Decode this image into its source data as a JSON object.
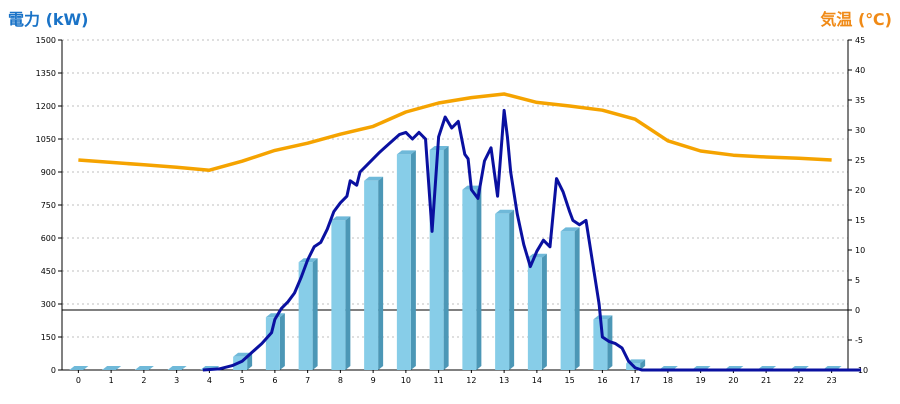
{
  "chart_data": {
    "type": "bar",
    "title_left": "電力 (kW)",
    "title_right": "気温 (℃)",
    "colors": {
      "left_title": "#1a73c7",
      "right_title": "#f08a16",
      "bar_front": "#87cde8",
      "bar_side": "#4c97b6",
      "bar_top": "#6fb9d9",
      "power_line": "#0a10a0",
      "temp_line": "#f5a300",
      "grid": "#bfbfbf",
      "axis": "#000000"
    },
    "categories": [
      "0",
      "1",
      "2",
      "3",
      "4",
      "5",
      "6",
      "7",
      "8",
      "9",
      "10",
      "11",
      "12",
      "13",
      "14",
      "15",
      "16",
      "17",
      "18",
      "19",
      "20",
      "21",
      "22",
      "23"
    ],
    "y_left": {
      "min": 0,
      "max": 1500,
      "ticks": [
        "0",
        "150",
        "300",
        "450",
        "600",
        "750",
        "900",
        "1050",
        "1200",
        "1350",
        "1500"
      ]
    },
    "y_right": {
      "min": -10,
      "max": 45,
      "ticks": [
        "-10",
        "-5",
        "0",
        "5",
        "10",
        "15",
        "20",
        "25",
        "30",
        "35",
        "40",
        "45"
      ]
    },
    "series": [
      {
        "kind": "bar",
        "axis": "left",
        "values": [
          0,
          0,
          0,
          0,
          0,
          60,
          240,
          490,
          680,
          860,
          980,
          1000,
          820,
          710,
          510,
          630,
          230,
          30,
          0,
          0,
          0,
          0,
          0,
          0
        ]
      },
      {
        "kind": "line",
        "axis": "left",
        "x": [
          3.8,
          4.3,
          4.7,
          5.0,
          5.3,
          5.6,
          5.9,
          6.0,
          6.2,
          6.4,
          6.6,
          6.8,
          7.0,
          7.2,
          7.4,
          7.6,
          7.8,
          8.0,
          8.2,
          8.3,
          8.5,
          8.6,
          8.8,
          9.0,
          9.2,
          9.5,
          9.8,
          10.0,
          10.2,
          10.4,
          10.6,
          10.8,
          11.0,
          11.2,
          11.4,
          11.6,
          11.8,
          11.9,
          12.0,
          12.2,
          12.4,
          12.6,
          12.8,
          13.0,
          13.1,
          13.2,
          13.4,
          13.6,
          13.8,
          14.0,
          14.2,
          14.4,
          14.6,
          14.8,
          15.0,
          15.1,
          15.3,
          15.5,
          15.7,
          15.9,
          16.0,
          16.2,
          16.4,
          16.6,
          16.8,
          17.0,
          17.2,
          17.5,
          23.9
        ],
        "values": [
          0,
          5,
          20,
          40,
          80,
          120,
          170,
          230,
          280,
          310,
          350,
          420,
          500,
          560,
          580,
          640,
          720,
          760,
          790,
          860,
          840,
          900,
          930,
          960,
          990,
          1030,
          1070,
          1080,
          1050,
          1080,
          1050,
          630,
          1060,
          1150,
          1100,
          1130,
          980,
          960,
          820,
          780,
          950,
          1010,
          790,
          1180,
          1060,
          900,
          710,
          570,
          470,
          540,
          590,
          560,
          870,
          810,
          720,
          680,
          660,
          680,
          490,
          300,
          150,
          130,
          120,
          100,
          40,
          10,
          0,
          0,
          0
        ]
      },
      {
        "kind": "line",
        "axis": "right",
        "x": [
          0,
          1,
          2,
          3,
          4,
          5,
          6,
          7,
          8,
          9,
          10,
          11,
          12,
          13,
          14,
          15,
          16,
          17,
          18,
          19,
          20,
          21,
          22,
          23
        ],
        "values": [
          25.0,
          24.6,
          24.2,
          23.8,
          23.3,
          24.8,
          26.6,
          27.8,
          29.3,
          30.6,
          33.0,
          34.5,
          35.4,
          36.0,
          34.6,
          34.0,
          33.3,
          31.8,
          28.2,
          26.5,
          25.8,
          25.5,
          25.3,
          25.0
        ]
      }
    ]
  }
}
